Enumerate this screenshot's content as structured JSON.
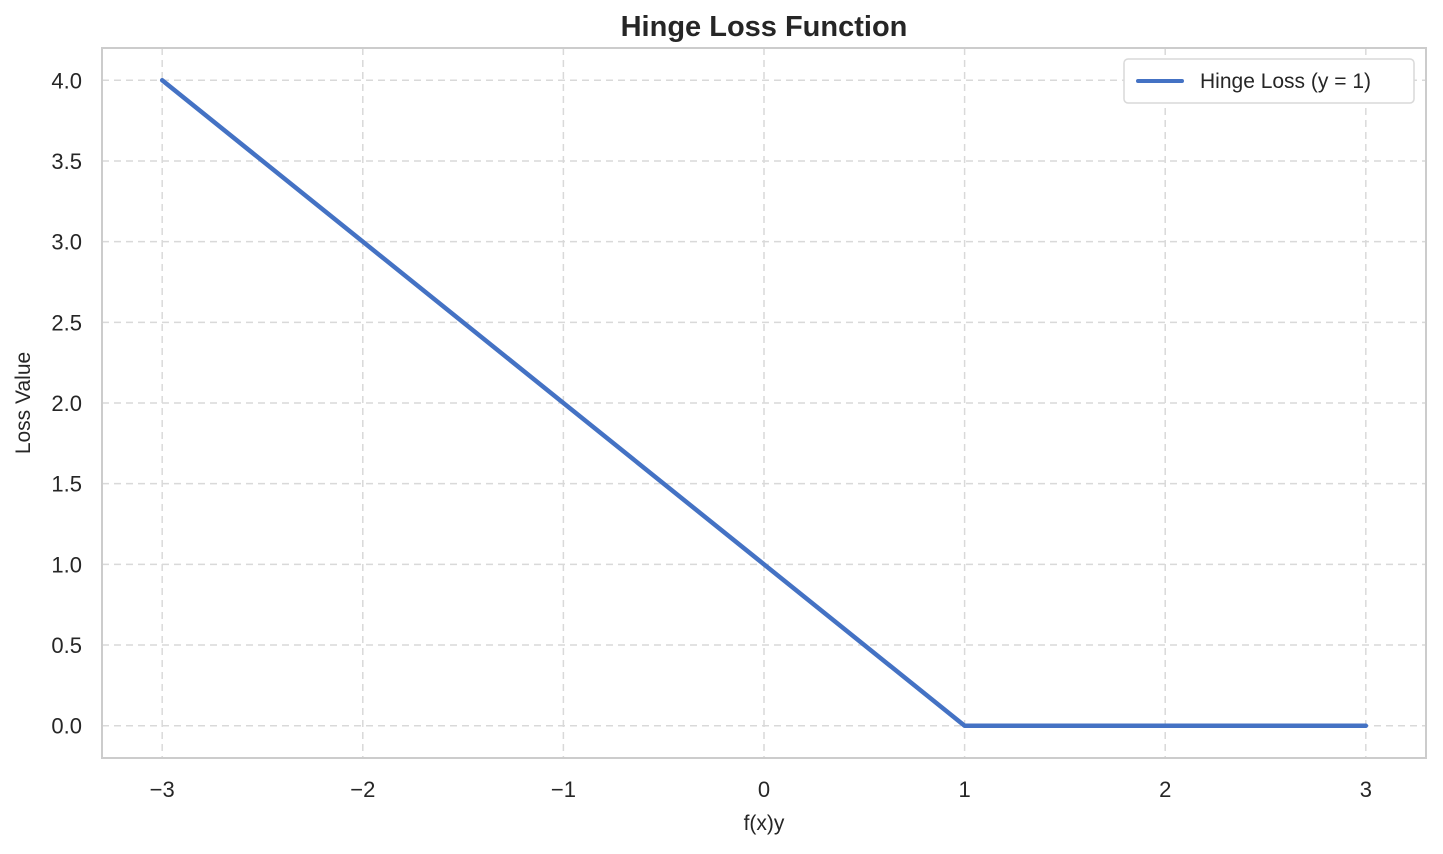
{
  "chart_data": {
    "type": "line",
    "title": "Hinge Loss Function",
    "xlabel": "f(x)y",
    "ylabel": "Loss Value",
    "xlim": [
      -3.3,
      3.3
    ],
    "ylim": [
      -0.2,
      4.2
    ],
    "xticks": [
      -3,
      -2,
      -1,
      0,
      1,
      2,
      3
    ],
    "xtick_labels": [
      "−3",
      "−2",
      "−1",
      "0",
      "1",
      "2",
      "3"
    ],
    "yticks": [
      0.0,
      0.5,
      1.0,
      1.5,
      2.0,
      2.5,
      3.0,
      3.5,
      4.0
    ],
    "ytick_labels": [
      "0.0",
      "0.5",
      "1.0",
      "1.5",
      "2.0",
      "2.5",
      "3.0",
      "3.5",
      "4.0"
    ],
    "grid": true,
    "legend_position": "top-right",
    "series": [
      {
        "name": "Hinge Loss (y = 1)",
        "color": "#4472c4",
        "x": [
          -3,
          -2,
          -1,
          0,
          1,
          2,
          3
        ],
        "y": [
          4,
          3,
          2,
          1,
          0,
          0,
          0
        ]
      }
    ]
  }
}
